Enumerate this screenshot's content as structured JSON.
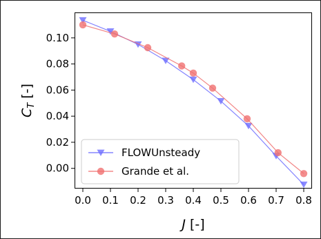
{
  "chart_data": {
    "type": "line",
    "xlabel": "J [-]",
    "ylabel": "C_T [-]",
    "xlim": [
      -0.03,
      0.83
    ],
    "ylim": [
      -0.0155,
      0.1195
    ],
    "xticks": [
      "0.0",
      "0.1",
      "0.2",
      "0.3",
      "0.4",
      "0.5",
      "0.6",
      "0.7",
      "0.8"
    ],
    "yticks": [
      "0.00",
      "0.02",
      "0.04",
      "0.06",
      "0.08",
      "0.10"
    ],
    "grid": false,
    "legend_position": "bottom-left",
    "series": [
      {
        "name": "FLOWUnsteady",
        "color": "#6e6eff",
        "marker": "triangle-down",
        "x": [
          0.0,
          0.1,
          0.2,
          0.3,
          0.4,
          0.5,
          0.6,
          0.7,
          0.8
        ],
        "y": [
          0.1135,
          0.105,
          0.095,
          0.0825,
          0.068,
          0.0515,
          0.0325,
          0.0095,
          -0.0125
        ]
      },
      {
        "name": "Grande et al.",
        "color": "#f07070",
        "marker": "circle",
        "x": [
          0.0,
          0.115,
          0.235,
          0.358,
          0.4,
          0.47,
          0.595,
          0.707,
          0.8
        ],
        "y": [
          0.11,
          0.103,
          0.0925,
          0.0785,
          0.073,
          0.0615,
          0.038,
          0.012,
          -0.004
        ]
      }
    ]
  }
}
